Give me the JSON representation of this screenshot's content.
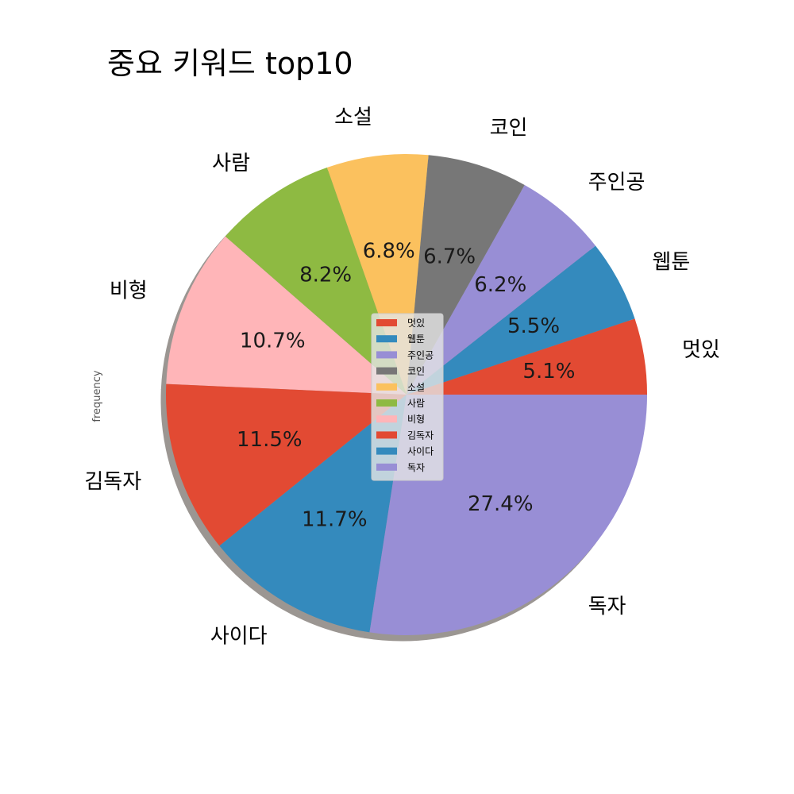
{
  "chart_data": {
    "type": "pie",
    "title": "중요 키워드 top10",
    "ylabel": "frequency",
    "start_angle_deg": 0,
    "direction": "counterclockwise",
    "shadow": true,
    "legend_position": "center",
    "slices": [
      {
        "label": "멋있",
        "percent": 5.1,
        "percent_label": "5.1%",
        "color": "#E24A33"
      },
      {
        "label": "웹툰",
        "percent": 5.5,
        "percent_label": "5.5%",
        "color": "#348ABD"
      },
      {
        "label": "주인공",
        "percent": 6.2,
        "percent_label": "6.2%",
        "color": "#988ED5"
      },
      {
        "label": "코인",
        "percent": 6.7,
        "percent_label": "6.7%",
        "color": "#777777"
      },
      {
        "label": "소설",
        "percent": 6.8,
        "percent_label": "6.8%",
        "color": "#FBC15E"
      },
      {
        "label": "사람",
        "percent": 8.2,
        "percent_label": "8.2%",
        "color": "#8EBA42"
      },
      {
        "label": "비형",
        "percent": 10.7,
        "percent_label": "10.7%",
        "color": "#FFB5B8"
      },
      {
        "label": "김독자",
        "percent": 11.5,
        "percent_label": "11.5%",
        "color": "#E24A33"
      },
      {
        "label": "사이다",
        "percent": 11.7,
        "percent_label": "11.7%",
        "color": "#348ABD"
      },
      {
        "label": "독자",
        "percent": 27.4,
        "percent_label": "27.4%",
        "color": "#988ED5"
      }
    ]
  }
}
